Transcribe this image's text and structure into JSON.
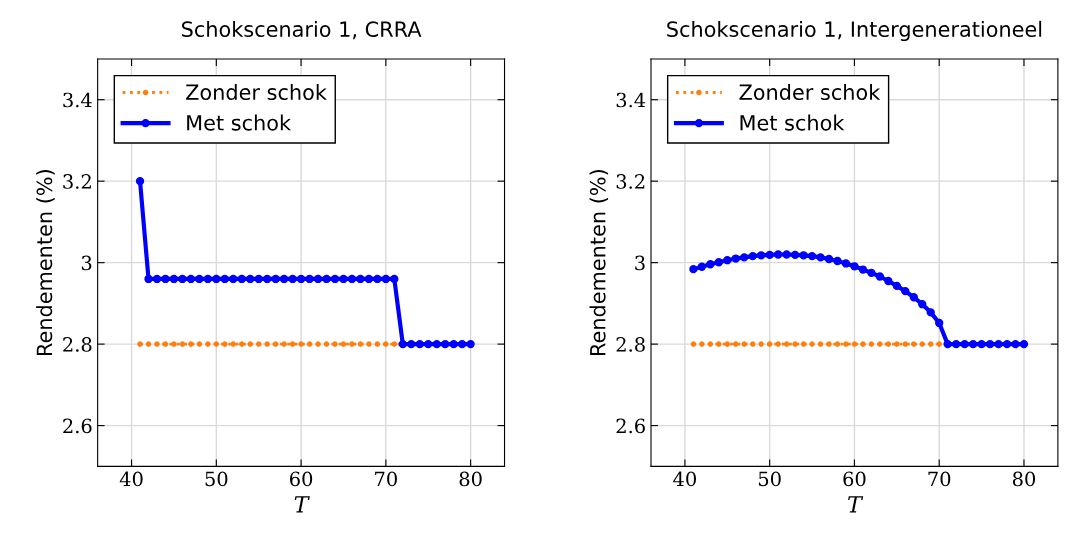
{
  "chart_data": [
    {
      "type": "line",
      "title": "Schokscenario 1, CRRA",
      "xlabel": "T",
      "ylabel": "Rendementen (%)",
      "xlim": [
        36,
        84
      ],
      "xticks": [
        40,
        50,
        60,
        70,
        80
      ],
      "ylim": [
        2.5,
        3.5
      ],
      "yticks": [
        2.6,
        2.8,
        3,
        3.2,
        3.4
      ],
      "grid": true,
      "legend": "top left",
      "x": [
        41,
        42,
        43,
        44,
        45,
        46,
        47,
        48,
        49,
        50,
        51,
        52,
        53,
        54,
        55,
        56,
        57,
        58,
        59,
        60,
        61,
        62,
        63,
        64,
        65,
        66,
        67,
        68,
        69,
        70,
        71,
        72,
        73,
        74,
        75,
        76,
        77,
        78,
        79,
        80
      ],
      "series": [
        {
          "name": "Zonder schok",
          "color": "#ff7f0e",
          "line_style": "dotted",
          "marker": "circle",
          "values": [
            2.8,
            2.8,
            2.8,
            2.8,
            2.8,
            2.8,
            2.8,
            2.8,
            2.8,
            2.8,
            2.8,
            2.8,
            2.8,
            2.8,
            2.8,
            2.8,
            2.8,
            2.8,
            2.8,
            2.8,
            2.8,
            2.8,
            2.8,
            2.8,
            2.8,
            2.8,
            2.8,
            2.8,
            2.8,
            2.8,
            2.8,
            2.8,
            null,
            null,
            null,
            null,
            null,
            null,
            null,
            null
          ]
        },
        {
          "name": "Met schok",
          "color": "#0000ff",
          "line_style": "solid",
          "marker": "circle",
          "values": [
            3.2,
            2.96,
            2.96,
            2.96,
            2.96,
            2.96,
            2.96,
            2.96,
            2.96,
            2.96,
            2.96,
            2.96,
            2.96,
            2.96,
            2.96,
            2.96,
            2.96,
            2.96,
            2.96,
            2.96,
            2.96,
            2.96,
            2.96,
            2.96,
            2.96,
            2.96,
            2.96,
            2.96,
            2.96,
            2.96,
            2.96,
            2.8,
            2.8,
            2.8,
            2.8,
            2.8,
            2.8,
            2.8,
            2.8,
            2.8
          ]
        }
      ]
    },
    {
      "type": "line",
      "title": "Schokscenario 1, Intergenerationeel",
      "xlabel": "T",
      "ylabel": "Rendementen (%)",
      "xlim": [
        36,
        84
      ],
      "xticks": [
        40,
        50,
        60,
        70,
        80
      ],
      "ylim": [
        2.5,
        3.5
      ],
      "yticks": [
        2.6,
        2.8,
        3,
        3.2,
        3.4
      ],
      "grid": true,
      "legend": "top left",
      "x": [
        41,
        42,
        43,
        44,
        45,
        46,
        47,
        48,
        49,
        50,
        51,
        52,
        53,
        54,
        55,
        56,
        57,
        58,
        59,
        60,
        61,
        62,
        63,
        64,
        65,
        66,
        67,
        68,
        69,
        70,
        71,
        72,
        73,
        74,
        75,
        76,
        77,
        78,
        79,
        80
      ],
      "series": [
        {
          "name": "Zonder schok",
          "color": "#ff7f0e",
          "line_style": "dotted",
          "marker": "circle",
          "values": [
            2.8,
            2.8,
            2.8,
            2.8,
            2.8,
            2.8,
            2.8,
            2.8,
            2.8,
            2.8,
            2.8,
            2.8,
            2.8,
            2.8,
            2.8,
            2.8,
            2.8,
            2.8,
            2.8,
            2.8,
            2.8,
            2.8,
            2.8,
            2.8,
            2.8,
            2.8,
            2.8,
            2.8,
            2.8,
            2.8,
            2.8,
            null,
            null,
            null,
            null,
            null,
            null,
            null,
            null,
            null
          ]
        },
        {
          "name": "Met schok",
          "color": "#0000ff",
          "line_style": "solid",
          "marker": "circle",
          "values": [
            2.984,
            2.99,
            2.996,
            3.001,
            3.006,
            3.01,
            3.013,
            3.016,
            3.018,
            3.019,
            3.02,
            3.02,
            3.019,
            3.018,
            3.016,
            3.013,
            3.009,
            3.004,
            2.998,
            2.991,
            2.983,
            2.975,
            2.966,
            2.955,
            2.943,
            2.93,
            2.915,
            2.898,
            2.878,
            2.852,
            2.8,
            2.8,
            2.8,
            2.8,
            2.8,
            2.8,
            2.8,
            2.8,
            2.8,
            2.8
          ]
        }
      ]
    }
  ]
}
